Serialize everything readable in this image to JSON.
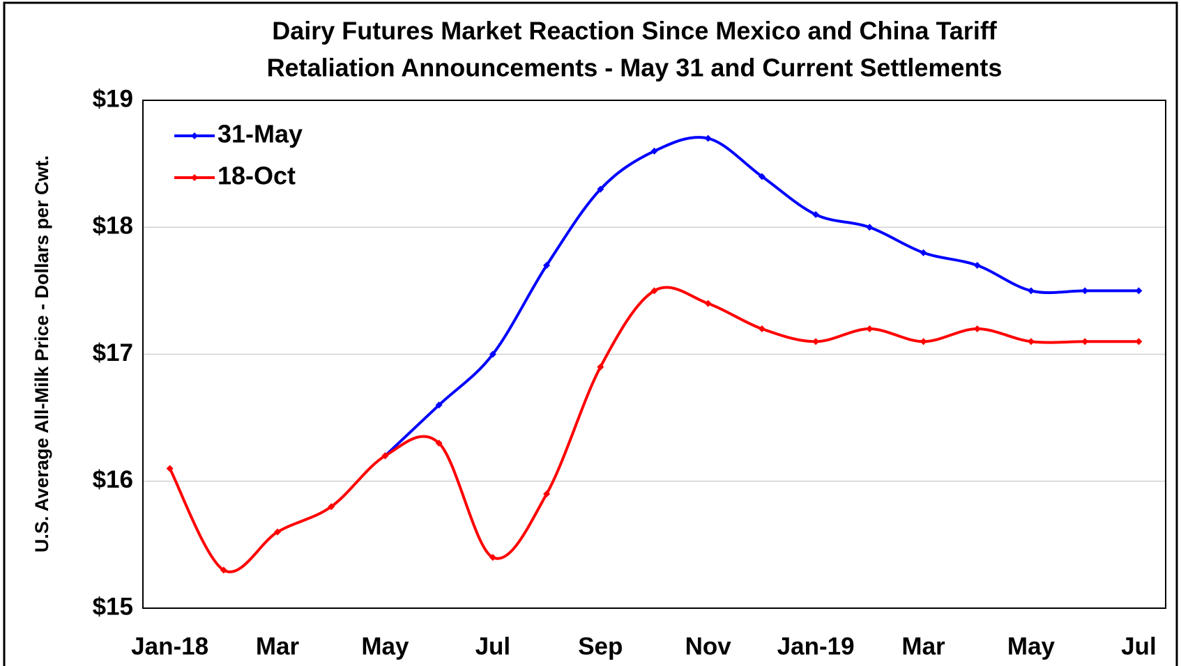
{
  "chart_data": {
    "type": "line",
    "title": [
      "Dairy Futures Market Reaction Since Mexico and China Tariff",
      "Retaliation Announcements - May 31 and Current Settlements"
    ],
    "y_label": "U.S. Average All-Milk Price - Dollars per Cwt.",
    "categories": [
      "Jan-18",
      null,
      "Mar",
      null,
      "May",
      null,
      "Jul",
      null,
      "Sep",
      null,
      "Nov",
      null,
      "Jan-19",
      null,
      "Mar",
      null,
      "May",
      null,
      "Jul"
    ],
    "series": [
      {
        "name": "31-May",
        "color": "#0000ff",
        "values": [
          null,
          null,
          null,
          null,
          16.2,
          16.6,
          17.0,
          17.7,
          18.3,
          18.6,
          18.7,
          18.4,
          18.1,
          18.0,
          17.8,
          17.7,
          17.5,
          17.5,
          17.5
        ]
      },
      {
        "name": "18-Oct",
        "color": "#ff0000",
        "values": [
          16.1,
          15.3,
          15.6,
          15.8,
          16.2,
          16.3,
          15.4,
          15.9,
          16.9,
          17.5,
          17.4,
          17.2,
          17.1,
          17.2,
          17.1,
          17.2,
          17.1,
          17.1,
          17.1
        ]
      }
    ],
    "ylim": [
      15,
      19
    ],
    "yticks": [
      {
        "value": 15,
        "label": "$15"
      },
      {
        "value": 16,
        "label": "$16"
      },
      {
        "value": 17,
        "label": "$17"
      },
      {
        "value": 18,
        "label": "$18"
      },
      {
        "value": 19,
        "label": "$19"
      }
    ],
    "grid": true,
    "legend": "upper left",
    "smooth": true
  }
}
